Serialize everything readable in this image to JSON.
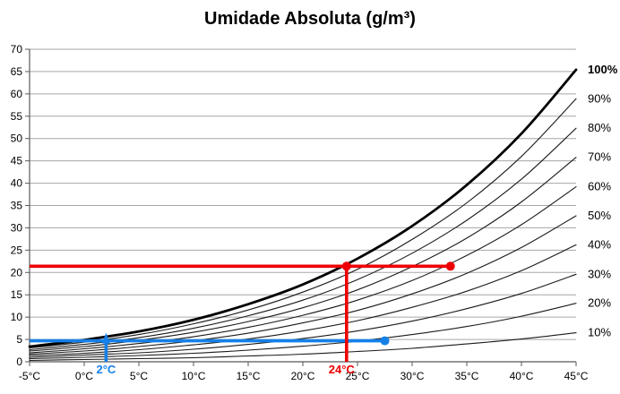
{
  "title": "Umidade Absoluta (g/m³)",
  "colors": {
    "accent_red": "#ee0000",
    "accent_blue": "#1580e8",
    "gridline": "#a6a6a6",
    "axis": "#595959",
    "curve": "#1a1a1a",
    "curve_bold": "#000000",
    "text": "#000000"
  },
  "chart_data": {
    "type": "line",
    "title": "Umidade Absoluta (g/m³)",
    "grid": "horizontal",
    "legend_position": "right-margin",
    "xlim": [
      -5,
      45
    ],
    "ylim": [
      0,
      70
    ],
    "x_tick_labels": [
      "-5°C",
      "0°C",
      "5°C",
      "10°C",
      "15°C",
      "20°C",
      "25°C",
      "30°C",
      "35°C",
      "40°C",
      "45°C"
    ],
    "y_tick_labels": [
      "0",
      "5",
      "10",
      "15",
      "20",
      "25",
      "30",
      "35",
      "40",
      "45",
      "50",
      "55",
      "60",
      "65",
      "70"
    ],
    "x": [
      -5,
      0,
      5,
      10,
      15,
      20,
      25,
      30,
      35,
      40,
      45
    ],
    "series": [
      {
        "name": "10%",
        "rh_percent": 10,
        "bold": false,
        "values": [
          0.3,
          0.5,
          0.7,
          0.9,
          1.3,
          1.7,
          2.3,
          3.0,
          4.0,
          5.1,
          6.5
        ]
      },
      {
        "name": "20%",
        "rh_percent": 20,
        "bold": false,
        "values": [
          0.7,
          1.0,
          1.4,
          1.9,
          2.6,
          3.5,
          4.6,
          6.1,
          7.9,
          10.2,
          13.1
        ]
      },
      {
        "name": "30%",
        "rh_percent": 30,
        "bold": false,
        "values": [
          1.0,
          1.5,
          2.0,
          2.8,
          3.9,
          5.2,
          6.9,
          9.1,
          11.9,
          15.3,
          19.6
        ]
      },
      {
        "name": "40%",
        "rh_percent": 40,
        "bold": false,
        "values": [
          1.4,
          1.9,
          2.7,
          3.8,
          5.1,
          6.9,
          9.2,
          12.2,
          15.8,
          20.4,
          26.2
        ]
      },
      {
        "name": "50%",
        "rh_percent": 50,
        "bold": false,
        "values": [
          1.7,
          2.4,
          3.4,
          4.7,
          6.4,
          8.7,
          11.5,
          15.2,
          19.8,
          25.6,
          32.7
        ]
      },
      {
        "name": "60%",
        "rh_percent": 60,
        "bold": false,
        "values": [
          2.0,
          2.9,
          4.1,
          5.6,
          7.7,
          10.4,
          13.8,
          18.2,
          23.8,
          30.7,
          39.2
        ]
      },
      {
        "name": "70%",
        "rh_percent": 70,
        "bold": false,
        "values": [
          2.4,
          3.4,
          4.8,
          6.6,
          9.0,
          12.1,
          16.1,
          21.3,
          27.7,
          35.8,
          45.8
        ]
      },
      {
        "name": "80%",
        "rh_percent": 80,
        "bold": false,
        "values": [
          2.7,
          3.9,
          5.4,
          7.5,
          10.3,
          13.8,
          18.4,
          24.3,
          31.7,
          40.9,
          52.3
        ]
      },
      {
        "name": "90%",
        "rh_percent": 90,
        "bold": false,
        "values": [
          3.1,
          4.4,
          6.1,
          8.5,
          11.6,
          15.6,
          20.7,
          27.4,
          35.6,
          46.0,
          58.9
        ]
      },
      {
        "name": "100%",
        "rh_percent": 100,
        "bold": true,
        "values": [
          3.4,
          4.9,
          6.8,
          9.4,
          12.9,
          17.3,
          23.1,
          30.4,
          39.6,
          51.1,
          65.4
        ]
      }
    ],
    "annotations": {
      "red_dew_point": {
        "color": "#ee0000",
        "humidity_level": 21.4,
        "state_point_t": 33.5,
        "dew_point_t": 24,
        "label": "24°C"
      },
      "blue_dew_point": {
        "color": "#1580e8",
        "humidity_level": 4.7,
        "state_point_t": 27.5,
        "dew_point_t": 2,
        "label": "2°C"
      }
    }
  }
}
